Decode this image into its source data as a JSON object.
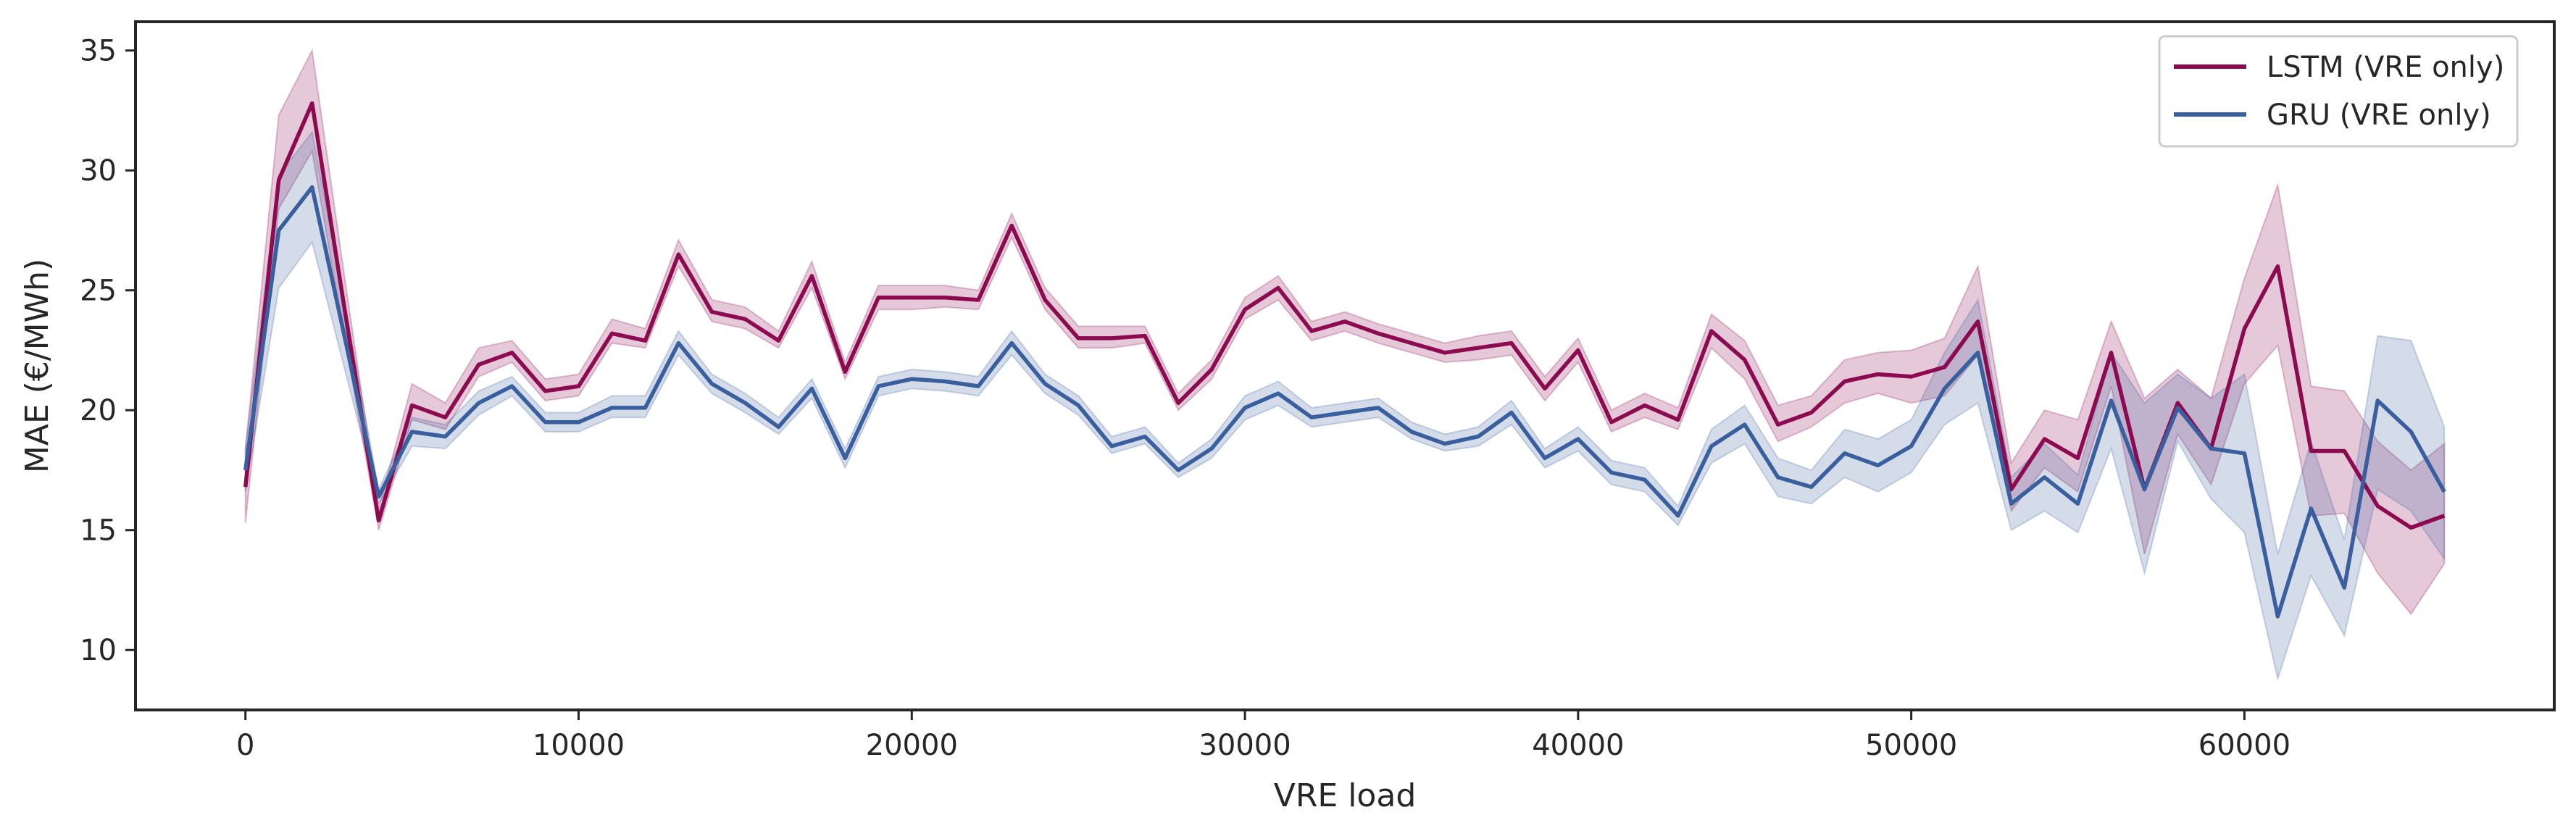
{
  "chart_data": {
    "type": "line",
    "xlabel": "VRE load",
    "ylabel": "MAE (€/MWh)",
    "xlim": [
      -3300,
      69300
    ],
    "ylim": [
      7.5,
      36.2
    ],
    "x_ticks": [
      0,
      10000,
      20000,
      30000,
      40000,
      50000,
      60000
    ],
    "x_tick_labels": [
      "0",
      "10000",
      "20000",
      "30000",
      "40000",
      "50000",
      "60000"
    ],
    "y_ticks": [
      10,
      15,
      20,
      25,
      30,
      35
    ],
    "y_tick_labels": [
      "10",
      "15",
      "20",
      "25",
      "30",
      "35"
    ],
    "grid": false,
    "legend_position": "top-right",
    "x": [
      0,
      1000,
      2000,
      3000,
      4000,
      5000,
      6000,
      7000,
      8000,
      9000,
      10000,
      11000,
      12000,
      13000,
      14000,
      15000,
      16000,
      17000,
      18000,
      19000,
      20000,
      21000,
      22000,
      23000,
      24000,
      25000,
      26000,
      27000,
      28000,
      29000,
      30000,
      31000,
      32000,
      33000,
      34000,
      35000,
      36000,
      37000,
      38000,
      39000,
      40000,
      41000,
      42000,
      43000,
      44000,
      45000,
      46000,
      47000,
      48000,
      49000,
      50000,
      51000,
      52000,
      53000,
      54000,
      55000,
      56000,
      57000,
      58000,
      59000,
      60000,
      61000,
      62000,
      63000,
      64000,
      65000,
      66000
    ],
    "series": [
      {
        "name": "LSTM (VRE only)",
        "color": "#8b0a50",
        "values": [
          16.8,
          29.6,
          32.8,
          24.0,
          15.4,
          20.2,
          19.7,
          21.9,
          22.4,
          20.8,
          21.0,
          23.2,
          22.9,
          26.5,
          24.1,
          23.8,
          22.9,
          25.6,
          21.6,
          24.7,
          24.7,
          24.7,
          24.6,
          27.7,
          24.6,
          23.0,
          23.0,
          23.1,
          20.3,
          21.7,
          24.2,
          25.1,
          23.3,
          23.7,
          23.2,
          22.8,
          22.4,
          22.6,
          22.8,
          20.9,
          22.5,
          19.5,
          20.2,
          19.6,
          23.3,
          22.1,
          19.4,
          19.9,
          21.2,
          21.5,
          21.4,
          21.8,
          23.7,
          16.7,
          18.8,
          18.0,
          22.4,
          16.7,
          20.3,
          18.4,
          23.4,
          26.0,
          18.3,
          18.3,
          16.0,
          15.1,
          15.6
        ],
        "ci_low": [
          15.3,
          28.4,
          30.8,
          22.8,
          15.0,
          19.6,
          19.2,
          21.4,
          22.0,
          20.4,
          20.6,
          22.8,
          22.6,
          26.0,
          23.7,
          23.4,
          22.6,
          25.1,
          21.3,
          24.2,
          24.2,
          24.3,
          24.2,
          27.2,
          24.2,
          22.6,
          22.6,
          22.8,
          20.0,
          21.3,
          23.8,
          24.6,
          22.9,
          23.3,
          22.8,
          22.4,
          22.0,
          22.1,
          22.3,
          20.4,
          22.0,
          19.1,
          19.7,
          19.2,
          22.6,
          21.3,
          18.7,
          19.3,
          20.3,
          20.7,
          20.3,
          20.6,
          22.3,
          15.8,
          17.6,
          16.6,
          21.0,
          14.0,
          19.0,
          16.9,
          21.1,
          22.7,
          15.6,
          15.7,
          13.2,
          11.5,
          13.6
        ],
        "ci_high": [
          18.4,
          32.3,
          35.0,
          25.3,
          15.9,
          21.1,
          20.3,
          22.6,
          22.9,
          21.3,
          21.5,
          23.8,
          23.4,
          27.1,
          24.6,
          24.3,
          23.3,
          26.2,
          22.0,
          25.2,
          25.2,
          25.2,
          25.0,
          28.2,
          25.1,
          23.5,
          23.5,
          23.5,
          20.7,
          22.1,
          24.7,
          25.6,
          23.7,
          24.1,
          23.6,
          23.2,
          22.8,
          23.1,
          23.3,
          21.4,
          23.0,
          20.0,
          20.7,
          20.1,
          24.0,
          22.9,
          20.2,
          20.6,
          22.1,
          22.4,
          22.5,
          23.0,
          26.0,
          17.8,
          20.0,
          19.6,
          23.7,
          20.5,
          21.7,
          20.5,
          25.5,
          29.4,
          21.0,
          20.8,
          18.7,
          17.5,
          18.6
        ]
      },
      {
        "name": "GRU (VRE only)",
        "color": "#3a5f9e",
        "values": [
          17.5,
          27.5,
          29.3,
          22.9,
          16.4,
          19.1,
          18.9,
          20.3,
          21.0,
          19.5,
          19.5,
          20.1,
          20.1,
          22.8,
          21.1,
          20.3,
          19.3,
          20.9,
          18.0,
          21.0,
          21.3,
          21.2,
          21.0,
          22.8,
          21.1,
          20.2,
          18.5,
          18.9,
          17.5,
          18.4,
          20.1,
          20.7,
          19.7,
          19.9,
          20.1,
          19.1,
          18.6,
          18.9,
          19.9,
          18.0,
          18.8,
          17.4,
          17.1,
          15.6,
          18.5,
          19.4,
          17.2,
          16.8,
          18.2,
          17.7,
          18.5,
          20.9,
          22.4,
          16.1,
          17.2,
          16.1,
          20.4,
          16.7,
          20.1,
          18.4,
          18.2,
          11.4,
          15.9,
          12.6,
          20.4,
          19.1,
          16.6
        ],
        "ci_low": [
          16.6,
          25.1,
          27.0,
          21.6,
          16.1,
          18.5,
          18.4,
          19.8,
          20.6,
          19.1,
          19.1,
          19.7,
          19.7,
          22.3,
          20.7,
          19.9,
          19.0,
          20.5,
          17.6,
          20.6,
          20.9,
          20.8,
          20.6,
          22.3,
          20.7,
          19.8,
          18.2,
          18.6,
          17.2,
          18.0,
          19.6,
          20.2,
          19.3,
          19.5,
          19.7,
          18.8,
          18.3,
          18.5,
          19.4,
          17.6,
          18.3,
          16.9,
          16.6,
          15.2,
          17.8,
          18.6,
          16.4,
          16.1,
          17.2,
          16.6,
          17.4,
          19.4,
          20.3,
          15.0,
          15.8,
          14.9,
          18.4,
          13.2,
          18.7,
          16.3,
          14.9,
          8.8,
          13.1,
          10.6,
          16.7,
          15.8,
          13.8
        ],
        "ci_high": [
          18.4,
          29.8,
          31.6,
          24.3,
          16.7,
          19.7,
          19.4,
          20.8,
          21.4,
          19.9,
          19.9,
          20.6,
          20.6,
          23.3,
          21.5,
          20.7,
          19.7,
          21.3,
          18.4,
          21.4,
          21.7,
          21.6,
          21.4,
          23.3,
          21.5,
          20.6,
          18.9,
          19.3,
          17.8,
          18.8,
          20.6,
          21.2,
          20.1,
          20.3,
          20.5,
          19.5,
          19.0,
          19.3,
          20.4,
          18.4,
          19.3,
          17.9,
          17.6,
          16.0,
          19.2,
          20.2,
          18.0,
          17.5,
          19.2,
          18.8,
          19.6,
          22.4,
          24.6,
          17.2,
          18.6,
          17.3,
          22.4,
          20.3,
          21.5,
          20.5,
          21.5,
          14.0,
          18.7,
          14.6,
          23.1,
          22.9,
          19.3
        ]
      }
    ]
  }
}
